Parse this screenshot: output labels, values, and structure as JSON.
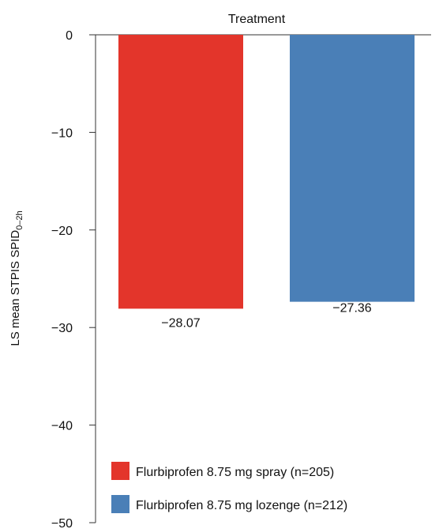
{
  "chart_data": {
    "type": "bar",
    "title": "Treatment",
    "ylabel_main": "LS mean STPIS SPID",
    "ylabel_sub": "0–2h",
    "ylim": [
      -50,
      0
    ],
    "yticks": [
      0,
      -10,
      -20,
      -30,
      -40,
      -50
    ],
    "ytick_labels": [
      "0",
      "−10",
      "−20",
      "−30",
      "−40",
      "−50"
    ],
    "grid": false,
    "legend_position": "bottom-left",
    "series": [
      {
        "name": "Flurbiprofen 8.75 mg spray (n=205)",
        "value": -28.07,
        "label": "−28.07",
        "color": "#e3352b"
      },
      {
        "name": "Flurbiprofen 8.75 mg lozenge (n=212)",
        "value": -27.36,
        "label": "−27.36",
        "color": "#4a7fb7"
      }
    ]
  }
}
